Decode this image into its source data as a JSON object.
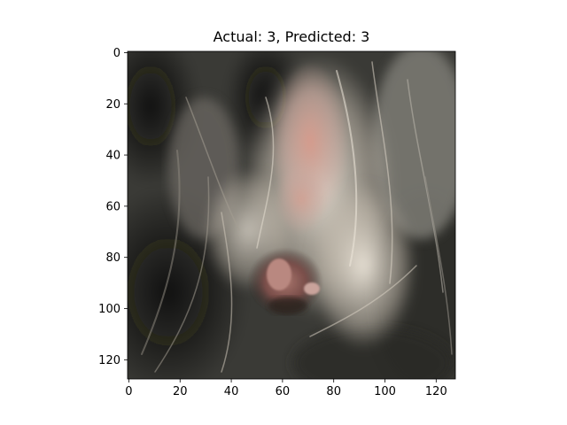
{
  "figure": {
    "title": "Actual: 3, Predicted: 3"
  },
  "image_axes": {
    "xticks": [
      "0",
      "20",
      "40",
      "60",
      "80",
      "100",
      "120"
    ],
    "yticks": [
      "0",
      "20",
      "40",
      "60",
      "80",
      "100",
      "120"
    ],
    "xlim": [
      -0.5,
      127.5
    ],
    "ylim": [
      127.5,
      -0.5
    ],
    "image_content": "close-up photo of an animal ear interior with dark and light fur",
    "palette": {
      "dark_fur": "#1c1b18",
      "mid_fur": "#6f6b62",
      "light_fur": "#d9d2c6",
      "skin_pink": "#c98f82",
      "ear_canal": "#8a5a55",
      "frame": "#000000"
    }
  }
}
